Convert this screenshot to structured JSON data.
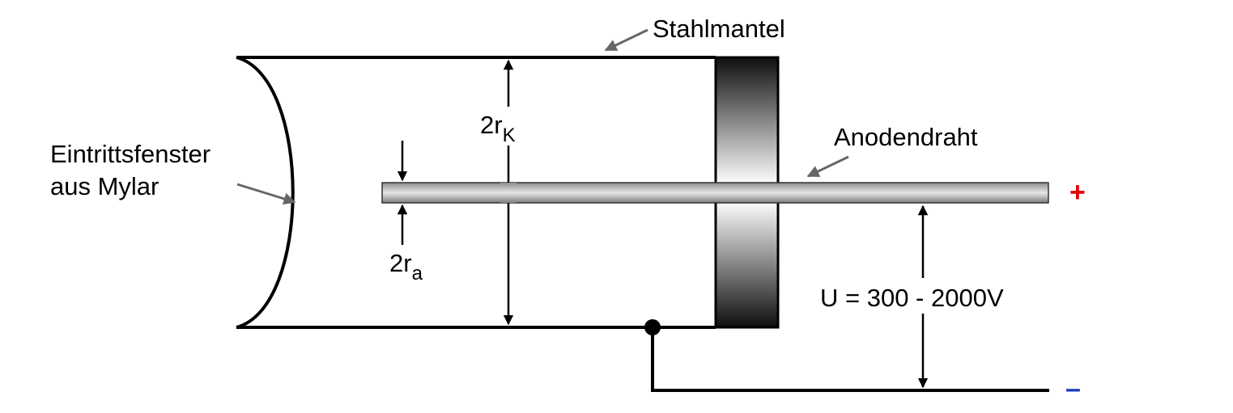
{
  "labels": {
    "mantel": "Stahlmantel",
    "anode": "Anodendraht",
    "window_line1": "Eintrittsfenster",
    "window_line2": "aus Mylar",
    "rk_main": "2r",
    "rk_sub": "K",
    "ra_main": "2r",
    "ra_sub": "a",
    "voltage": "U = 300 - 2000V",
    "plus": "+",
    "minus": "–"
  },
  "colors": {
    "plus": "#e00000",
    "minus": "#1f3fbf",
    "outline": "#000000",
    "pointer": "#666666"
  }
}
